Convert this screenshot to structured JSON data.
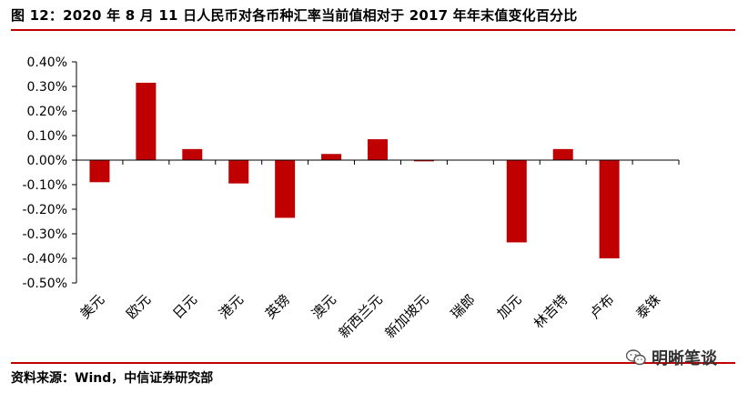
{
  "header": {
    "title": "图 12：2020 年 8 月 11 日人民币对各币种汇率当前值相对于 2017 年年末值变化百分比"
  },
  "footer": {
    "source": "资料来源：Wind，中信证券研究部"
  },
  "watermark": {
    "text": "明晰笔谈",
    "icon": "wechat-icon"
  },
  "colors": {
    "bar": "#c00000",
    "rule": "#c00000",
    "axis": "#000000"
  },
  "chart_data": {
    "type": "bar",
    "title": "",
    "xlabel": "",
    "ylabel": "",
    "categories": [
      "美元",
      "欧元",
      "日元",
      "港元",
      "英镑",
      "澳元",
      "新西兰元",
      "新加坡元",
      "瑞郎",
      "加元",
      "林吉特",
      "卢布",
      "泰铢"
    ],
    "values": [
      -0.09,
      0.315,
      0.045,
      -0.095,
      -0.235,
      0.025,
      0.085,
      -0.005,
      0.0,
      -0.335,
      0.045,
      -0.4,
      0.0
    ],
    "ylim": [
      -0.5,
      0.4
    ],
    "yticks": [
      0.4,
      0.3,
      0.2,
      0.1,
      0.0,
      -0.1,
      -0.2,
      -0.3,
      -0.4,
      -0.5
    ],
    "ytick_labels": [
      "0.40%",
      "0.30%",
      "0.20%",
      "0.10%",
      "0.00%",
      "-0.10%",
      "-0.20%",
      "-0.30%",
      "-0.40%",
      "-0.50%"
    ],
    "grid": false,
    "legend": "none"
  }
}
